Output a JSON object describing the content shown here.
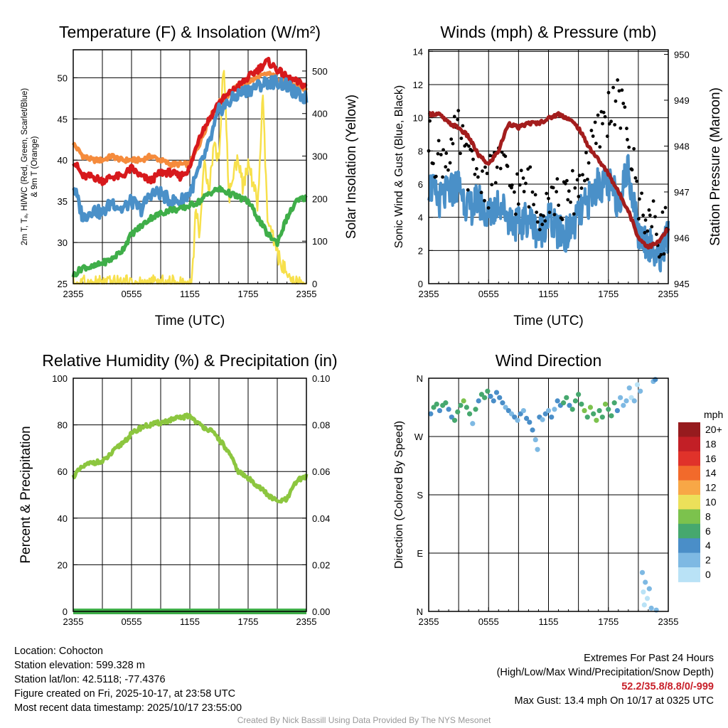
{
  "chart_data": [
    {
      "type": "line",
      "title": "Temperature (F) & Insolation (W/m²)",
      "xlabel": "Time (UTC)",
      "ylabel": "2m T, Td, HI/WC (Red, Green, Scarlet/Blue) & 9m T (Orange)",
      "ylabel_lines": [
        "2m T, Tₐ, HI/WC (Red, Green, Scarlet/Blue)",
        "& 9m T (Orange)"
      ],
      "ylabel_right": "Solar Insolation (Yellow)",
      "xticks": [
        "2355",
        "0555",
        "1155",
        "1755",
        "2355"
      ],
      "yticks": [
        25,
        30,
        35,
        40,
        45,
        50
      ],
      "yticks_right": [
        0,
        100,
        200,
        300,
        400,
        500
      ],
      "ylim": [
        25,
        53.4
      ],
      "ylim_right": [
        0,
        550
      ],
      "hours": [
        0,
        1,
        2,
        3,
        4,
        5,
        6,
        7,
        8,
        9,
        10,
        11,
        12,
        13,
        14,
        15,
        16,
        17,
        18,
        19,
        20,
        21,
        22,
        23,
        24
      ],
      "series": [
        {
          "name": "9m T",
          "color": "#f58b3c",
          "values": [
            42,
            40.5,
            40,
            40,
            40.5,
            40,
            40,
            40,
            40.5,
            40,
            39.5,
            39.5,
            39.5,
            42,
            45,
            47,
            48,
            49,
            49.5,
            50,
            50.5,
            50,
            49.5,
            49,
            48.5
          ]
        },
        {
          "name": "2m T",
          "color": "#d7191c",
          "values": [
            40,
            38,
            38,
            37.5,
            38,
            38,
            39,
            38,
            37.5,
            38.5,
            38.5,
            38,
            39,
            43,
            45,
            47,
            48,
            49,
            50,
            51,
            52,
            51,
            50,
            49.5,
            49
          ]
        },
        {
          "name": "HI/WC",
          "color": "#4a90c8",
          "values": [
            37,
            33,
            34,
            33.5,
            35,
            34,
            35,
            34,
            36,
            36,
            35,
            35,
            36,
            39,
            42,
            46,
            47,
            48,
            48.5,
            49,
            49.5,
            49.5,
            49,
            48,
            47.5
          ]
        },
        {
          "name": "Td",
          "color": "#3fae49",
          "values": [
            26,
            27,
            27,
            27.5,
            28,
            29,
            31,
            32,
            33,
            33.5,
            34,
            34,
            34.5,
            35,
            36,
            36.5,
            36,
            35.5,
            35,
            33,
            31,
            30,
            33,
            35,
            35.5
          ]
        }
      ],
      "insolation": {
        "name": "Solar Insolation",
        "color": "#f7e04b",
        "hours": [
          0,
          12,
          12.3,
          12.6,
          13,
          13.5,
          14,
          14.5,
          15,
          15.5,
          15.8,
          16,
          16.5,
          17,
          17.5,
          18,
          18.5,
          19,
          19.5,
          20,
          21,
          22,
          22.3,
          24
        ],
        "values": [
          0,
          0,
          30,
          180,
          120,
          280,
          230,
          330,
          290,
          530,
          350,
          200,
          260,
          300,
          220,
          280,
          240,
          180,
          440,
          150,
          70,
          20,
          0,
          0
        ]
      }
    },
    {
      "type": "line",
      "title": "Winds (mph) & Pressure (mb)",
      "xlabel": "Time (UTC)",
      "ylabel": "Sonic Wind & Gust (Blue, Black)",
      "ylabel_right": "Station Pressure (Maroon)",
      "xticks": [
        "2355",
        "0555",
        "1155",
        "1755",
        "2355"
      ],
      "yticks": [
        0,
        2,
        4,
        6,
        8,
        10,
        12,
        14
      ],
      "yticks_right": [
        945,
        946,
        947,
        948,
        949,
        950
      ],
      "ylim": [
        0,
        14.1
      ],
      "ylim_right": [
        945,
        950.1
      ],
      "hours": [
        0,
        1,
        2,
        3,
        4,
        5,
        6,
        7,
        8,
        9,
        10,
        11,
        12,
        13,
        14,
        15,
        16,
        17,
        18,
        19,
        20,
        21,
        22,
        23,
        24
      ],
      "series": [
        {
          "name": "Sonic Wind",
          "color": "#4a90c8",
          "values": [
            6,
            5,
            5.5,
            6,
            4.5,
            5,
            4,
            5,
            4,
            3.5,
            4,
            3,
            4,
            3,
            3,
            4,
            5,
            6,
            6,
            5,
            7,
            3,
            2.5,
            1.5,
            3
          ]
        },
        {
          "name": "Gust",
          "color": "#000000",
          "values": [
            8.5,
            7.5,
            8,
            9,
            7,
            7,
            6,
            7.5,
            6,
            5.5,
            6,
            4.5,
            5.5,
            5,
            5,
            6,
            7.5,
            9,
            10.5,
            11,
            9,
            5,
            4,
            3,
            3.5
          ]
        },
        {
          "name": "Station Pressure",
          "color": "#a31d1d",
          "axis": "right",
          "values": [
            948.7,
            948.7,
            948.5,
            948.4,
            948.2,
            947.8,
            947.6,
            947.9,
            948.5,
            948.4,
            948.5,
            948.5,
            948.6,
            948.7,
            948.6,
            948.4,
            948.0,
            947.7,
            947.4,
            947.0,
            946.6,
            946.0,
            945.8,
            945.9,
            946.2
          ]
        }
      ],
      "max_gust": 13.4
    },
    {
      "type": "line",
      "title": "Relative Humidity (%) & Precipitation (in)",
      "ylabel": "Percent & Precipitation",
      "xticks": [
        "2355",
        "0555",
        "1155",
        "1755",
        "2355"
      ],
      "yticks": [
        0,
        20,
        40,
        60,
        80,
        100
      ],
      "yticks_right": [
        "0.00",
        "0.02",
        "0.04",
        "0.06",
        "0.08",
        "0.10"
      ],
      "ylim": [
        0,
        100
      ],
      "ylim_right": [
        0,
        0.1
      ],
      "hours": [
        0,
        1,
        2,
        3,
        4,
        5,
        6,
        7,
        8,
        9,
        10,
        11,
        12,
        13,
        14,
        15,
        16,
        17,
        18,
        19,
        20,
        21,
        22,
        23,
        24
      ],
      "series": [
        {
          "name": "Relative Humidity",
          "color": "#8cc63f",
          "values": [
            58,
            62,
            64,
            64,
            68,
            72,
            76,
            79,
            80,
            81,
            82,
            83,
            84,
            80,
            78,
            74,
            68,
            60,
            57,
            54,
            50,
            47,
            48,
            56,
            58
          ]
        },
        {
          "name": "Precipitation",
          "color": "#3fae49",
          "values": [
            0,
            0,
            0,
            0,
            0,
            0,
            0,
            0,
            0,
            0,
            0,
            0,
            0,
            0,
            0,
            0,
            0,
            0,
            0,
            0,
            0,
            0,
            0,
            0,
            0
          ]
        }
      ]
    },
    {
      "type": "scatter",
      "title": "Wind Direction",
      "ylabel": "Direction (Colored By Speed)",
      "xticks": [
        "2355",
        "0555",
        "1155",
        "1755",
        "2355"
      ],
      "yticks": [
        "N",
        "E",
        "S",
        "W",
        "N"
      ],
      "ylim": [
        0,
        360
      ],
      "points": [
        [
          0.2,
          305,
          5
        ],
        [
          0.5,
          315,
          6
        ],
        [
          0.8,
          320,
          6
        ],
        [
          1.1,
          310,
          5
        ],
        [
          1.4,
          318,
          7
        ],
        [
          1.7,
          322,
          6
        ],
        [
          2.0,
          312,
          4
        ],
        [
          2.3,
          300,
          5
        ],
        [
          2.6,
          295,
          6
        ],
        [
          2.9,
          308,
          7
        ],
        [
          3.2,
          318,
          6
        ],
        [
          3.5,
          325,
          8
        ],
        [
          3.8,
          315,
          6
        ],
        [
          4.1,
          305,
          7
        ],
        [
          4.4,
          290,
          3
        ],
        [
          4.7,
          312,
          6
        ],
        [
          5.0,
          325,
          5
        ],
        [
          5.3,
          335,
          7
        ],
        [
          5.6,
          330,
          6
        ],
        [
          5.9,
          340,
          6
        ],
        [
          6.2,
          332,
          4
        ],
        [
          6.5,
          325,
          4
        ],
        [
          6.8,
          338,
          5
        ],
        [
          7.1,
          330,
          4
        ],
        [
          7.4,
          322,
          4
        ],
        [
          7.7,
          315,
          3
        ],
        [
          8.0,
          310,
          4
        ],
        [
          8.3,
          305,
          3
        ],
        [
          8.6,
          300,
          4
        ],
        [
          8.9,
          295,
          3
        ],
        [
          9.2,
          305,
          4
        ],
        [
          9.5,
          310,
          3
        ],
        [
          9.8,
          298,
          4
        ],
        [
          10.1,
          292,
          4
        ],
        [
          10.4,
          280,
          4
        ],
        [
          10.7,
          265,
          3
        ],
        [
          10.9,
          250,
          3
        ],
        [
          11.1,
          300,
          4
        ],
        [
          11.4,
          296,
          3
        ],
        [
          11.7,
          305,
          4
        ],
        [
          12.0,
          310,
          3
        ],
        [
          12.3,
          300,
          4
        ],
        [
          12.6,
          312,
          3
        ],
        [
          12.9,
          325,
          4
        ],
        [
          13.2,
          318,
          4
        ],
        [
          13.5,
          322,
          6
        ],
        [
          13.8,
          330,
          6
        ],
        [
          14.1,
          318,
          5
        ],
        [
          14.4,
          312,
          7
        ],
        [
          14.7,
          325,
          6
        ],
        [
          15.0,
          335,
          6
        ],
        [
          15.3,
          320,
          7
        ],
        [
          15.6,
          310,
          8
        ],
        [
          15.9,
          300,
          6
        ],
        [
          16.2,
          315,
          8
        ],
        [
          16.5,
          305,
          7
        ],
        [
          16.8,
          295,
          8
        ],
        [
          17.1,
          310,
          6
        ],
        [
          17.4,
          300,
          7
        ],
        [
          17.7,
          320,
          8
        ],
        [
          18.0,
          312,
          6
        ],
        [
          18.3,
          302,
          7
        ],
        [
          18.6,
          322,
          6
        ],
        [
          18.9,
          310,
          4
        ],
        [
          19.2,
          330,
          2
        ],
        [
          19.5,
          318,
          2
        ],
        [
          19.8,
          325,
          3
        ],
        [
          20.1,
          345,
          2
        ],
        [
          20.3,
          330,
          1
        ],
        [
          20.6,
          325,
          2
        ],
        [
          20.9,
          350,
          1
        ],
        [
          21.2,
          340,
          2
        ],
        [
          21.4,
          60,
          2
        ],
        [
          21.5,
          30,
          1
        ],
        [
          21.6,
          10,
          1
        ],
        [
          21.7,
          45,
          2
        ],
        [
          21.9,
          20,
          1
        ],
        [
          22.1,
          35,
          3
        ],
        [
          22.3,
          5,
          2
        ],
        [
          22.5,
          355,
          3
        ],
        [
          22.7,
          358,
          4
        ],
        [
          22.8,
          2,
          3
        ]
      ],
      "colorbar": {
        "label": "mph",
        "levels": [
          "20+",
          "18",
          "16",
          "14",
          "12",
          "10",
          "8",
          "6",
          "4",
          "2",
          "0"
        ],
        "colors": [
          "#961b1e",
          "#c21f26",
          "#e0322a",
          "#f26a2b",
          "#f8a746",
          "#ece05a",
          "#7cc24d",
          "#46a86e",
          "#4a8ec8",
          "#7eb9e3",
          "#b9e2f6"
        ]
      }
    }
  ],
  "info": {
    "location": "Location: Cohocton",
    "elevation": "Station elevation: 599.328 m",
    "latlon": "Station lat/lon: 42.5118; -77.4376",
    "created": "Figure created on Fri, 2025-10-17, at 23:58 UTC",
    "recent": "Most recent data timestamp: 2025/10/17 23:55:00"
  },
  "extremes": {
    "title": "Extremes For Past 24 Hours",
    "subtitle": "(High/Low/Max Wind/Precipitation/Snow Depth)",
    "values": "52.2/35.8/8.8/0/-999",
    "max_gust": "Max Gust: 13.4 mph On 10/17 at 0325 UTC"
  },
  "credit": "Created By Nick Bassill Using Data Provided By The NYS Mesonet"
}
